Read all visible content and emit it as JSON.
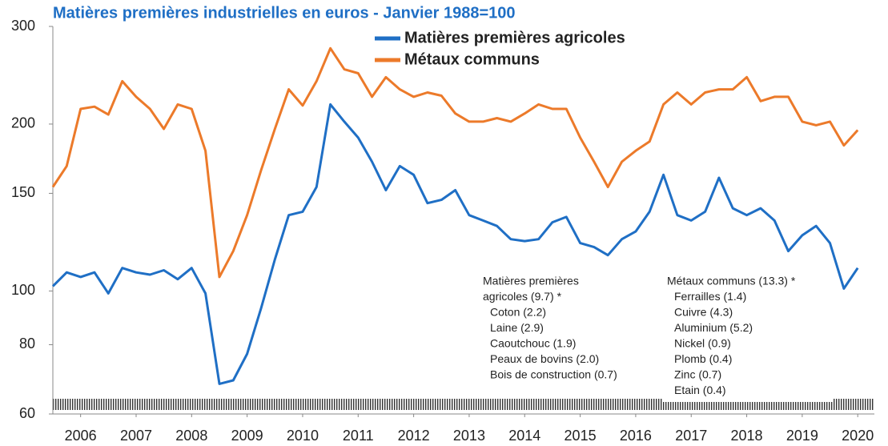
{
  "chart_data": {
    "type": "line",
    "title": "Matières premières industrielles en euros - Janvier 1988=100",
    "log_y": true,
    "x": [
      2006.0,
      2006.25,
      2006.5,
      2006.75,
      2007.0,
      2007.25,
      2007.5,
      2007.75,
      2008.0,
      2008.25,
      2008.5,
      2008.75,
      2009.0,
      2009.25,
      2009.5,
      2009.75,
      2010.0,
      2010.25,
      2010.5,
      2010.75,
      2011.0,
      2011.25,
      2011.5,
      2011.75,
      2012.0,
      2012.25,
      2012.5,
      2012.75,
      2013.0,
      2013.25,
      2013.5,
      2013.75,
      2014.0,
      2014.25,
      2014.5,
      2014.75,
      2015.0,
      2015.25,
      2015.5,
      2015.75,
      2016.0,
      2016.25,
      2016.5,
      2016.75,
      2017.0,
      2017.25,
      2017.5,
      2017.75,
      2018.0,
      2018.25,
      2018.5,
      2018.75,
      2019.0,
      2019.25,
      2019.5,
      2019.75,
      2020.0,
      2020.25,
      2020.5
    ],
    "series": [
      {
        "name": "Matières premières agricoles",
        "color": "#1f6fc5",
        "values": [
          102,
          108,
          106,
          108,
          99,
          110,
          108,
          107,
          109,
          105,
          110,
          99,
          68,
          69,
          77,
          93,
          114,
          137,
          139,
          154,
          217,
          202,
          189,
          171,
          152,
          168,
          162,
          144,
          146,
          152,
          137,
          134,
          131,
          124,
          123,
          124,
          133,
          136,
          122,
          120,
          116,
          124,
          128,
          139,
          162,
          137,
          134,
          139,
          160,
          141,
          137,
          141,
          134,
          118,
          126,
          131,
          122,
          101,
          110
        ]
      },
      {
        "name": "Métaux communs",
        "color": "#ec7a2a",
        "values": [
          154,
          168,
          213,
          215,
          208,
          239,
          224,
          213,
          196,
          217,
          213,
          179,
          106,
          118,
          137,
          165,
          196,
          231,
          216,
          239,
          274,
          251,
          247,
          224,
          243,
          231,
          224,
          228,
          225,
          209,
          202,
          202,
          205,
          202,
          209,
          217,
          213,
          213,
          189,
          171,
          154,
          171,
          179,
          186,
          217,
          228,
          217,
          228,
          231,
          231,
          243,
          220,
          224,
          224,
          202,
          199,
          202,
          183,
          195
        ]
      }
    ],
    "xlim": [
      2006,
      2020.8
    ],
    "xticks": [
      {
        "value": 2006.5,
        "label": "2006"
      },
      {
        "value": 2007.5,
        "label": "2007"
      },
      {
        "value": 2008.5,
        "label": "2008"
      },
      {
        "value": 2009.5,
        "label": "2009"
      },
      {
        "value": 2010.5,
        "label": "2010"
      },
      {
        "value": 2011.5,
        "label": "2011"
      },
      {
        "value": 2012.5,
        "label": "2012"
      },
      {
        "value": 2013.5,
        "label": "2013"
      },
      {
        "value": 2014.5,
        "label": "2014"
      },
      {
        "value": 2015.5,
        "label": "2015"
      },
      {
        "value": 2016.5,
        "label": "2016"
      },
      {
        "value": 2017.5,
        "label": "2017"
      },
      {
        "value": 2018.5,
        "label": "2018"
      },
      {
        "value": 2019.5,
        "label": "2019"
      },
      {
        "value": 2020.5,
        "label": "2020"
      }
    ],
    "ylim": [
      60,
      300
    ],
    "yticks": [
      60,
      80,
      100,
      150,
      200,
      300
    ],
    "annotations": [
      {
        "heading": [
          "Matières premières",
          "agricoles (9.7) *"
        ],
        "items": [
          "Coton (2.2)",
          "Laine (2.9)",
          "Caoutchouc (1.9)",
          "Peaux de bovins (2.0)",
          "Bois de construction (0.7)"
        ]
      },
      {
        "heading": [
          "Métaux communs (13.3) *"
        ],
        "items": [
          "Ferrailles (1.4)",
          "Cuivre (4.3)",
          "Aluminium (5.2)",
          "Nickel (0.9)",
          "Plomb (0.4)",
          "Zinc (0.7)",
          "Etain (0.4)"
        ]
      }
    ]
  }
}
